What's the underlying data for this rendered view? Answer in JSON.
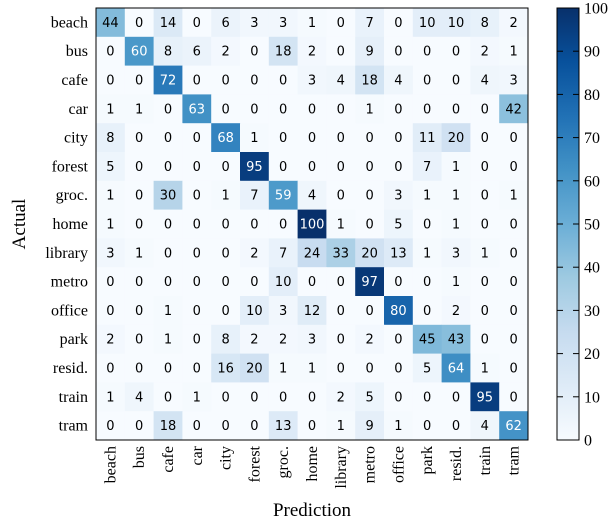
{
  "chart_data": {
    "type": "heatmap",
    "xlabel": "Prediction",
    "ylabel": "Actual",
    "categories": [
      "beach",
      "bus",
      "cafe",
      "car",
      "city",
      "forest",
      "groc.",
      "home",
      "library",
      "metro",
      "office",
      "park",
      "resid.",
      "train",
      "tram"
    ],
    "rows": [
      "beach",
      "bus",
      "cafe",
      "car",
      "city",
      "forest",
      "groc.",
      "home",
      "library",
      "metro",
      "office",
      "park",
      "resid.",
      "train",
      "tram"
    ],
    "matrix": [
      [
        44,
        0,
        14,
        0,
        6,
        3,
        3,
        1,
        0,
        7,
        0,
        10,
        10,
        8,
        2
      ],
      [
        0,
        60,
        8,
        6,
        2,
        0,
        18,
        2,
        0,
        9,
        0,
        0,
        0,
        2,
        1
      ],
      [
        0,
        0,
        72,
        0,
        0,
        0,
        0,
        3,
        4,
        18,
        4,
        0,
        0,
        4,
        3
      ],
      [
        1,
        1,
        0,
        63,
        0,
        0,
        0,
        0,
        0,
        1,
        0,
        0,
        0,
        0,
        42
      ],
      [
        8,
        0,
        0,
        0,
        68,
        1,
        0,
        0,
        0,
        0,
        0,
        11,
        20,
        0,
        0
      ],
      [
        5,
        0,
        0,
        0,
        0,
        95,
        0,
        0,
        0,
        0,
        0,
        7,
        1,
        0,
        0
      ],
      [
        1,
        0,
        30,
        0,
        1,
        7,
        59,
        4,
        0,
        0,
        3,
        1,
        1,
        0,
        1
      ],
      [
        1,
        0,
        0,
        0,
        0,
        0,
        0,
        100,
        1,
        0,
        5,
        0,
        1,
        0,
        0
      ],
      [
        3,
        1,
        0,
        0,
        0,
        2,
        7,
        24,
        33,
        20,
        13,
        1,
        3,
        1,
        0
      ],
      [
        0,
        0,
        0,
        0,
        0,
        0,
        10,
        0,
        0,
        97,
        0,
        0,
        1,
        0,
        0
      ],
      [
        0,
        0,
        1,
        0,
        0,
        10,
        3,
        12,
        0,
        0,
        80,
        0,
        2,
        0,
        0
      ],
      [
        2,
        0,
        1,
        0,
        8,
        2,
        2,
        3,
        0,
        2,
        0,
        45,
        43,
        0,
        0
      ],
      [
        0,
        0,
        0,
        0,
        16,
        20,
        1,
        1,
        0,
        0,
        0,
        5,
        64,
        1,
        0
      ],
      [
        1,
        4,
        0,
        1,
        0,
        0,
        0,
        0,
        2,
        5,
        0,
        0,
        0,
        95,
        0
      ],
      [
        0,
        0,
        18,
        0,
        0,
        0,
        13,
        0,
        1,
        9,
        1,
        0,
        0,
        4,
        62
      ]
    ],
    "colorbar": {
      "range": [
        0,
        100
      ],
      "ticks": [
        "0",
        "10",
        "20",
        "30",
        "40",
        "50",
        "60",
        "70",
        "80",
        "90",
        "100"
      ],
      "colormap": "Blues",
      "colors": [
        "#f7fbff",
        "#deebf7",
        "#c6dbef",
        "#9ecae1",
        "#6baed6",
        "#4292c6",
        "#2171b5",
        "#08519c",
        "#08306b"
      ]
    }
  }
}
